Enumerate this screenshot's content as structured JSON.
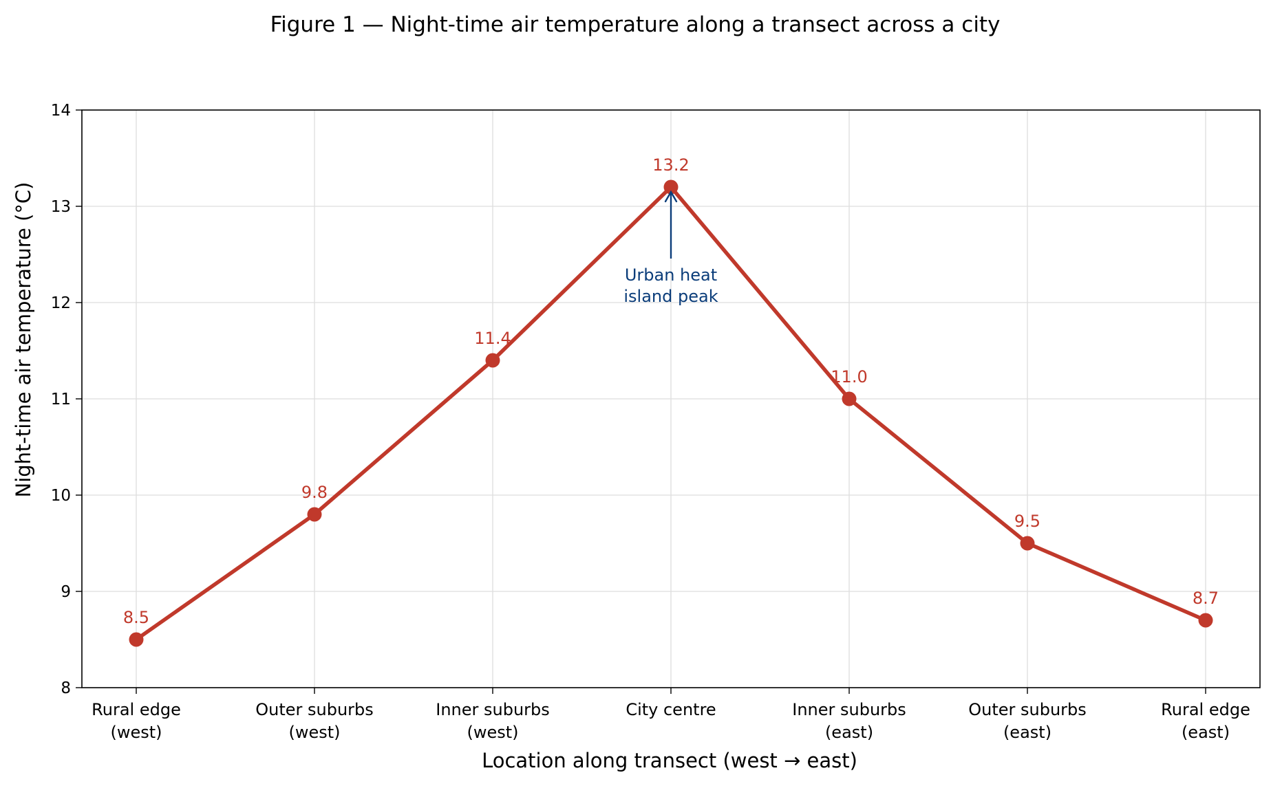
{
  "chart_data": {
    "type": "line",
    "title": "Figure 1 — Night-time air temperature along a transect across a city",
    "xlabel": "Location along transect (west → east)",
    "ylabel": "Night-time air temperature (°C)",
    "ylim": [
      8,
      14
    ],
    "yticks": [
      "8",
      "9",
      "10",
      "11",
      "12",
      "13",
      "14"
    ],
    "grid": true,
    "categories": [
      [
        "Rural edge",
        "(west)"
      ],
      [
        "Outer suburbs",
        "(west)"
      ],
      [
        "Inner suburbs",
        "(west)"
      ],
      [
        "City centre"
      ],
      [
        "Inner suburbs",
        "(east)"
      ],
      [
        "Outer suburbs",
        "(east)"
      ],
      [
        "Rural edge",
        "(east)"
      ]
    ],
    "series": [
      {
        "values": [
          8.5,
          9.8,
          11.4,
          13.2,
          11.0,
          9.5,
          8.7
        ],
        "labels": [
          "8.5",
          "9.8",
          "11.4",
          "13.2",
          "11.0",
          "9.5",
          "8.7"
        ],
        "color": "#c0392b"
      }
    ],
    "annotation": {
      "text": [
        "Urban heat",
        "island peak"
      ],
      "target_index": 3,
      "color": "#0b3d7a"
    }
  },
  "colors": {
    "grid": "#dddddd",
    "axis": "#000000"
  }
}
